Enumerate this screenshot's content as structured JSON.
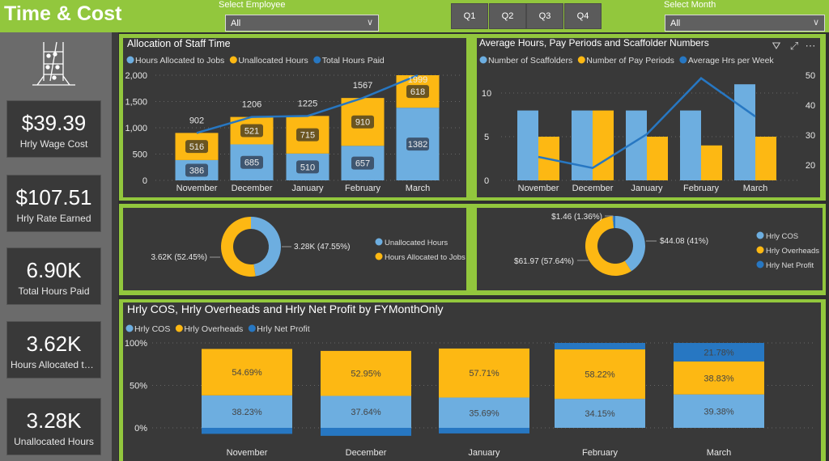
{
  "header": {
    "title": "Time & Cost",
    "employee_label": "Select Employee",
    "employee_value": "All",
    "month_label": "Select Month",
    "month_value": "All",
    "quarters": [
      "Q1",
      "Q2",
      "Q3",
      "Q4"
    ]
  },
  "kpis": [
    {
      "value": "$39.39",
      "label": "Hrly Wage Cost"
    },
    {
      "value": "$107.51",
      "label": "Hrly Rate Earned"
    },
    {
      "value": "6.90K",
      "label": "Total Hours Paid"
    },
    {
      "value": "3.62K",
      "label": "Hours Allocated to Jobs"
    },
    {
      "value": "3.28K",
      "label": "Unallocated Hours"
    }
  ],
  "colors": {
    "light_blue": "#6daee0",
    "yellow": "#fdb813",
    "dark_blue": "#2777c2",
    "green": "#92c73d",
    "panel": "#393939"
  },
  "chart_data": [
    {
      "type": "bar",
      "stacked": true,
      "title": "Allocation of Staff Time",
      "categories": [
        "November",
        "December",
        "January",
        "February",
        "March"
      ],
      "series": [
        {
          "name": "Hours Allocated to Jobs",
          "values": [
            386,
            685,
            510,
            657,
            1382
          ],
          "color": "#6daee0"
        },
        {
          "name": "Unallocated Hours",
          "values": [
            516,
            521,
            715,
            910,
            618
          ],
          "color": "#fdb813"
        },
        {
          "name": "Total Hours Paid",
          "type": "line",
          "values": [
            902,
            1206,
            1225,
            1567,
            1999
          ],
          "color": "#2777c2"
        }
      ],
      "yticks": [
        "0",
        "500",
        "1,000",
        "1,500",
        "2,000"
      ],
      "ylim": [
        0,
        2000
      ],
      "legend": "top-left",
      "grid": true
    },
    {
      "type": "bar",
      "title": "Average Hours, Pay Periods and Scaffolder Numbers",
      "categories": [
        "November",
        "December",
        "January",
        "February",
        "March"
      ],
      "series": [
        {
          "name": "Number of Scaffolders",
          "values": [
            8,
            8,
            8,
            8,
            11
          ],
          "color": "#6daee0"
        },
        {
          "name": "Number of Pay Periods",
          "values": [
            5,
            8,
            5,
            4,
            5
          ],
          "color": "#fdb813"
        },
        {
          "name": "Average Hrs per Week",
          "type": "line",
          "axis": "right",
          "values": [
            22.7,
            19,
            30.3,
            49,
            36.2
          ],
          "color": "#2777c2"
        }
      ],
      "yticks": [
        "0",
        "5",
        "10"
      ],
      "ylim": [
        0,
        12
      ],
      "y2ticks": [
        "20",
        "30",
        "40",
        "50"
      ],
      "y2lim": [
        20,
        50
      ],
      "legend": "top-left",
      "grid": true
    },
    {
      "type": "pie",
      "donut": true,
      "slices": [
        {
          "name": "Unallocated Hours",
          "value": 3.28,
          "label": "3.28K (47.55%)",
          "percent": 47.55,
          "color": "#6daee0"
        },
        {
          "name": "Hours Allocated to Jobs",
          "value": 3.62,
          "label": "3.62K (52.45%)",
          "percent": 52.45,
          "color": "#fdb813"
        }
      ],
      "legend": "right"
    },
    {
      "type": "pie",
      "donut": true,
      "slices": [
        {
          "name": "Hrly COS",
          "value": 44.08,
          "label": "$44.08 (41%)",
          "percent": 41,
          "color": "#6daee0"
        },
        {
          "name": "Hrly Overheads",
          "value": 61.97,
          "label": "$61.97 (57.64%)",
          "percent": 57.64,
          "color": "#fdb813"
        },
        {
          "name": "Hrly Net Profit",
          "value": 1.46,
          "label": "$1.46 (1.36%)",
          "percent": 1.36,
          "color": "#2777c2"
        }
      ],
      "legend": "right"
    },
    {
      "type": "bar",
      "stacked": true,
      "percent": true,
      "title": "Hrly COS, Hrly Overheads and Hrly Net Profit by FYMonthOnly",
      "categories": [
        "November",
        "December",
        "January",
        "February",
        "March"
      ],
      "series": [
        {
          "name": "Hrly COS",
          "values": [
            38.23,
            37.64,
            35.69,
            34.15,
            39.38
          ],
          "labels": [
            "38.23%",
            "37.64%",
            "35.69%",
            "34.15%",
            "39.38%"
          ],
          "color": "#6daee0"
        },
        {
          "name": "Hrly Overheads",
          "values": [
            54.69,
            52.95,
            57.71,
            58.22,
            38.83
          ],
          "labels": [
            "54.69%",
            "52.95%",
            "57.71%",
            "58.22%",
            "38.83%"
          ],
          "color": "#fdb813"
        },
        {
          "name": "Hrly Net Profit",
          "values": [
            -7.08,
            -9.41,
            -6.6,
            7.63,
            21.78
          ],
          "labels": [
            "",
            "",
            "",
            "",
            "21.78%"
          ],
          "color": "#2777c2"
        }
      ],
      "yticks": [
        "0%",
        "50%",
        "100%"
      ],
      "ylim": [
        0,
        100
      ],
      "legend": "top-left",
      "grid": true
    }
  ]
}
